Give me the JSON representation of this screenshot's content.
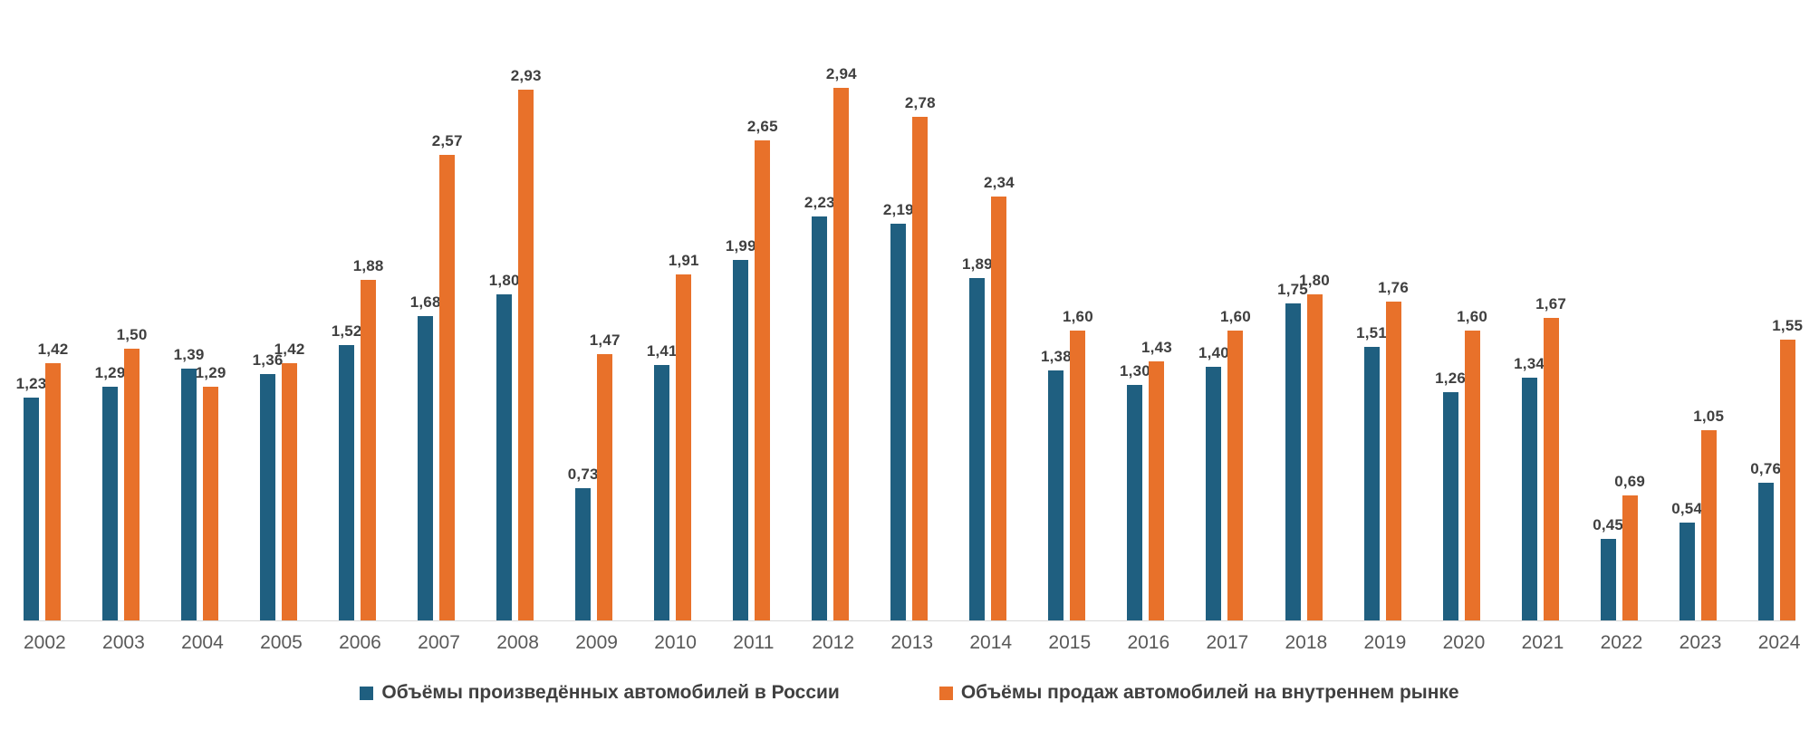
{
  "chart_data": {
    "type": "bar",
    "categories": [
      "2002",
      "2003",
      "2004",
      "2005",
      "2006",
      "2007",
      "2008",
      "2009",
      "2010",
      "2011",
      "2012",
      "2013",
      "2014",
      "2015",
      "2016",
      "2017",
      "2018",
      "2019",
      "2020",
      "2021",
      "2022",
      "2023",
      "2024"
    ],
    "series": [
      {
        "name": "Объёмы произведённых автомобилей в России",
        "color": "#1f5f80",
        "values": [
          1.23,
          1.29,
          1.39,
          1.36,
          1.52,
          1.68,
          1.8,
          0.73,
          1.41,
          1.99,
          2.23,
          2.19,
          1.89,
          1.38,
          1.3,
          1.4,
          1.75,
          1.51,
          1.26,
          1.34,
          0.45,
          0.54,
          0.76
        ]
      },
      {
        "name": "Объёмы продаж автомобилей на внутреннем рынке",
        "color": "#e8712a",
        "values": [
          1.42,
          1.5,
          1.29,
          1.42,
          1.88,
          2.57,
          2.93,
          1.47,
          1.91,
          2.65,
          2.94,
          2.78,
          2.34,
          1.6,
          1.43,
          1.6,
          1.8,
          1.76,
          1.6,
          1.67,
          0.69,
          1.05,
          1.55
        ]
      }
    ],
    "data_labels_shown": true,
    "value_decimal_separator": ",",
    "value_decimals": 2,
    "ylim": [
      0,
      3.0
    ],
    "grid": false,
    "y_axis_shown": false,
    "legend_position": "bottom",
    "colors": {
      "axis_line": "#d9d9d9",
      "data_label_text": "#3f3f3f",
      "x_label_text": "#595959",
      "legend_text": "#404040"
    }
  }
}
